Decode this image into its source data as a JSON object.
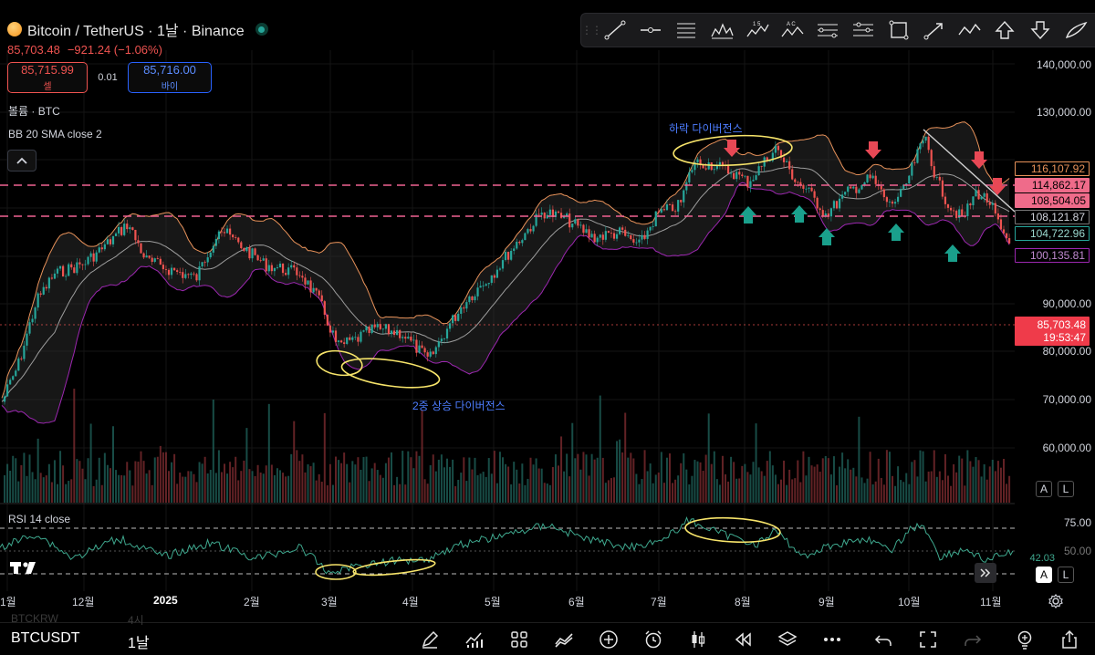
{
  "header": {
    "title": "Bitcoin / TetherUS · 1날 · Binance",
    "last_price": "85,703.48",
    "change": "−921.24 (−1.06%)"
  },
  "trade": {
    "sell_price": "85,715.99",
    "sell_label": "셀",
    "spread": "0.01",
    "buy_price": "85,716.00",
    "buy_label": "바이"
  },
  "indicators": {
    "volume_label": "볼륨 · BTC",
    "bb_label": "BB 20 SMA close 2",
    "rsi_label": "RSI 14 close"
  },
  "annotations": {
    "bearish_divergence": "하락 다이버전스",
    "double_bullish_divergence": "2중 상승 다이버전스"
  },
  "price_axis": [
    "140,000.00",
    "130,000.00",
    "90,000.00",
    "80,000.00",
    "70,000.00",
    "60,000.00"
  ],
  "price_tags": [
    {
      "value": "116,107.92",
      "style": "outline-orange"
    },
    {
      "value": "114,862.17",
      "style": "fill-pink"
    },
    {
      "value": "108,504.05",
      "style": "fill-pink"
    },
    {
      "value": "108,121.87",
      "style": "outline-gray"
    },
    {
      "value": "104,722.96",
      "style": "outline-green"
    },
    {
      "value": "100,135.81",
      "style": "outline-purple"
    }
  ],
  "current_tag": {
    "price": "85,703.48",
    "countdown": "19:53:47"
  },
  "rsi_axis": {
    "top": "75.00",
    "mid": "50.00",
    "current": "42.03"
  },
  "time_axis": [
    "1월",
    "12월",
    "2025",
    "2월",
    "3월",
    "4월",
    "5월",
    "6월",
    "7월",
    "8월",
    "9월",
    "10월",
    "11월"
  ],
  "bottom": {
    "symbol": "BTCUSDT",
    "timeframe": "1날",
    "ghost_symbol_1": "BTCKRW",
    "ghost_tf_1": "4시"
  },
  "buttons": {
    "auto": "A",
    "log": "L"
  },
  "tools": [
    "trend-line-icon",
    "horizontal-line-icon",
    "horizontal-ray-icon",
    "pattern-icon",
    "wave-1-5-icon",
    "wave-abc-icon",
    "parallel-channel-icon",
    "regression-icon",
    "rectangle-icon",
    "arrow-tool-icon",
    "polyline-icon",
    "arrow-up-icon",
    "arrow-down-icon",
    "brush-icon"
  ],
  "colors": {
    "up": "#26a69a",
    "down": "#ef5350",
    "bb_upper": "#e8925a",
    "bb_lower": "#9c27b0",
    "bb_basis": "#9e9e9e",
    "highlight": "#f7e46a",
    "level_line": "#f06292",
    "rsi": "#3fa98f"
  }
}
